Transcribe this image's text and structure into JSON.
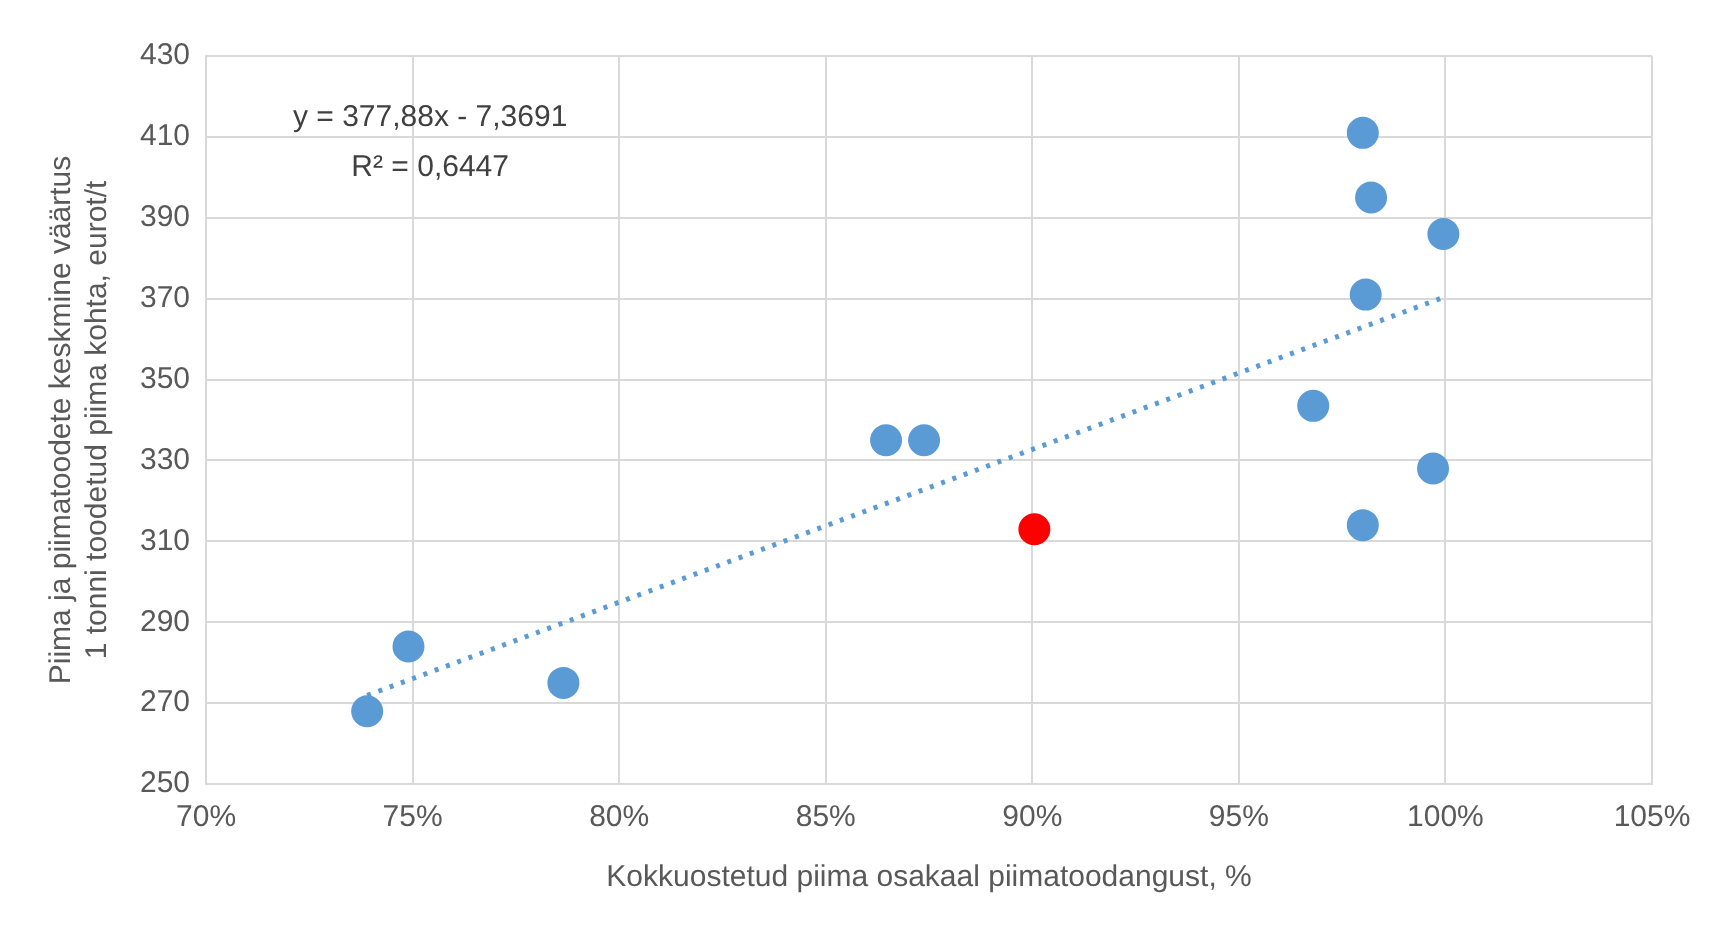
{
  "chart_data": {
    "type": "scatter",
    "xlabel": "Kokkuostetud piima osakaal piimatoodangust, %",
    "ylabel": "Piima ja piimatoodete keskmine väärtus\n1 tonni toodetud piima kohta, eurot/t",
    "annotations": [
      "y = 377,88x - 7,3691",
      "R² = 0,6447"
    ],
    "series": [
      {
        "type": "scatter",
        "color": "#5b9bd5",
        "x": [
          73.9,
          74.9,
          78.65,
          86.46,
          87.38,
          96.8,
          98.0,
          98.2,
          99.95,
          98.07,
          99.7,
          98.0
        ],
        "values": [
          268,
          284,
          275,
          335,
          335,
          343.5,
          411,
          395,
          386,
          371,
          328,
          314
        ]
      },
      {
        "type": "scatter",
        "color": "#ff0000",
        "x": [
          90.05
        ],
        "values": [
          313
        ]
      },
      {
        "type": "line",
        "color": "#5b9bd5",
        "line_style": "dotted",
        "marker": "none",
        "x": [
          73.9,
          100
        ],
        "values": [
          271.9,
          370.5
        ]
      }
    ],
    "xlim": [
      70,
      105
    ],
    "xticks": [
      {
        "value": 70,
        "label": "70%"
      },
      {
        "value": 75,
        "label": "75%"
      },
      {
        "value": 80,
        "label": "80%"
      },
      {
        "value": 85,
        "label": "85%"
      },
      {
        "value": 90,
        "label": "90%"
      },
      {
        "value": 95,
        "label": "95%"
      },
      {
        "value": 100,
        "label": "100%"
      },
      {
        "value": 105,
        "label": "105%"
      }
    ],
    "ylim": [
      250,
      430
    ],
    "yticks": [
      250,
      270,
      290,
      310,
      330,
      350,
      370,
      390,
      410,
      430
    ],
    "grid": true,
    "legend": false,
    "marker": "circle"
  }
}
